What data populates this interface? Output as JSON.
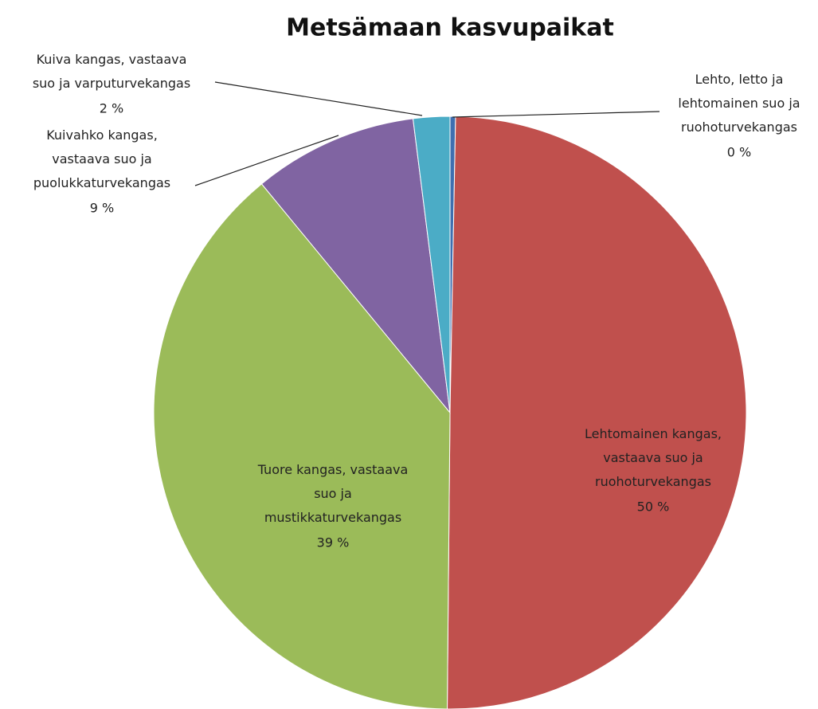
{
  "chart_data": {
    "type": "pie",
    "title": "Metsämaan kasvupaikat",
    "categories": [
      "Lehto,  letto ja\nlehtomainen suo ja\nruohoturvekangas",
      "Lehtomainen  kangas,\nvastaava suo ja\nruohoturvekangas",
      "Tuore kangas, vastaava\nsuo ja\nmustikkaturvekangas",
      "Kuivahko kangas,\nvastaava suo ja\npuolukkaturvekangas",
      "Kuiva kangas, vastaava\nsuo ja varputurvekangas"
    ],
    "values": [
      0.3,
      50,
      39,
      9,
      2
    ],
    "value_labels": [
      "0 %",
      "50 %",
      "39 %",
      "9 %",
      "2 %"
    ],
    "colors": [
      "#3f6fb0",
      "#c0504d",
      "#9bbb59",
      "#8064a2",
      "#4bacc6"
    ]
  }
}
